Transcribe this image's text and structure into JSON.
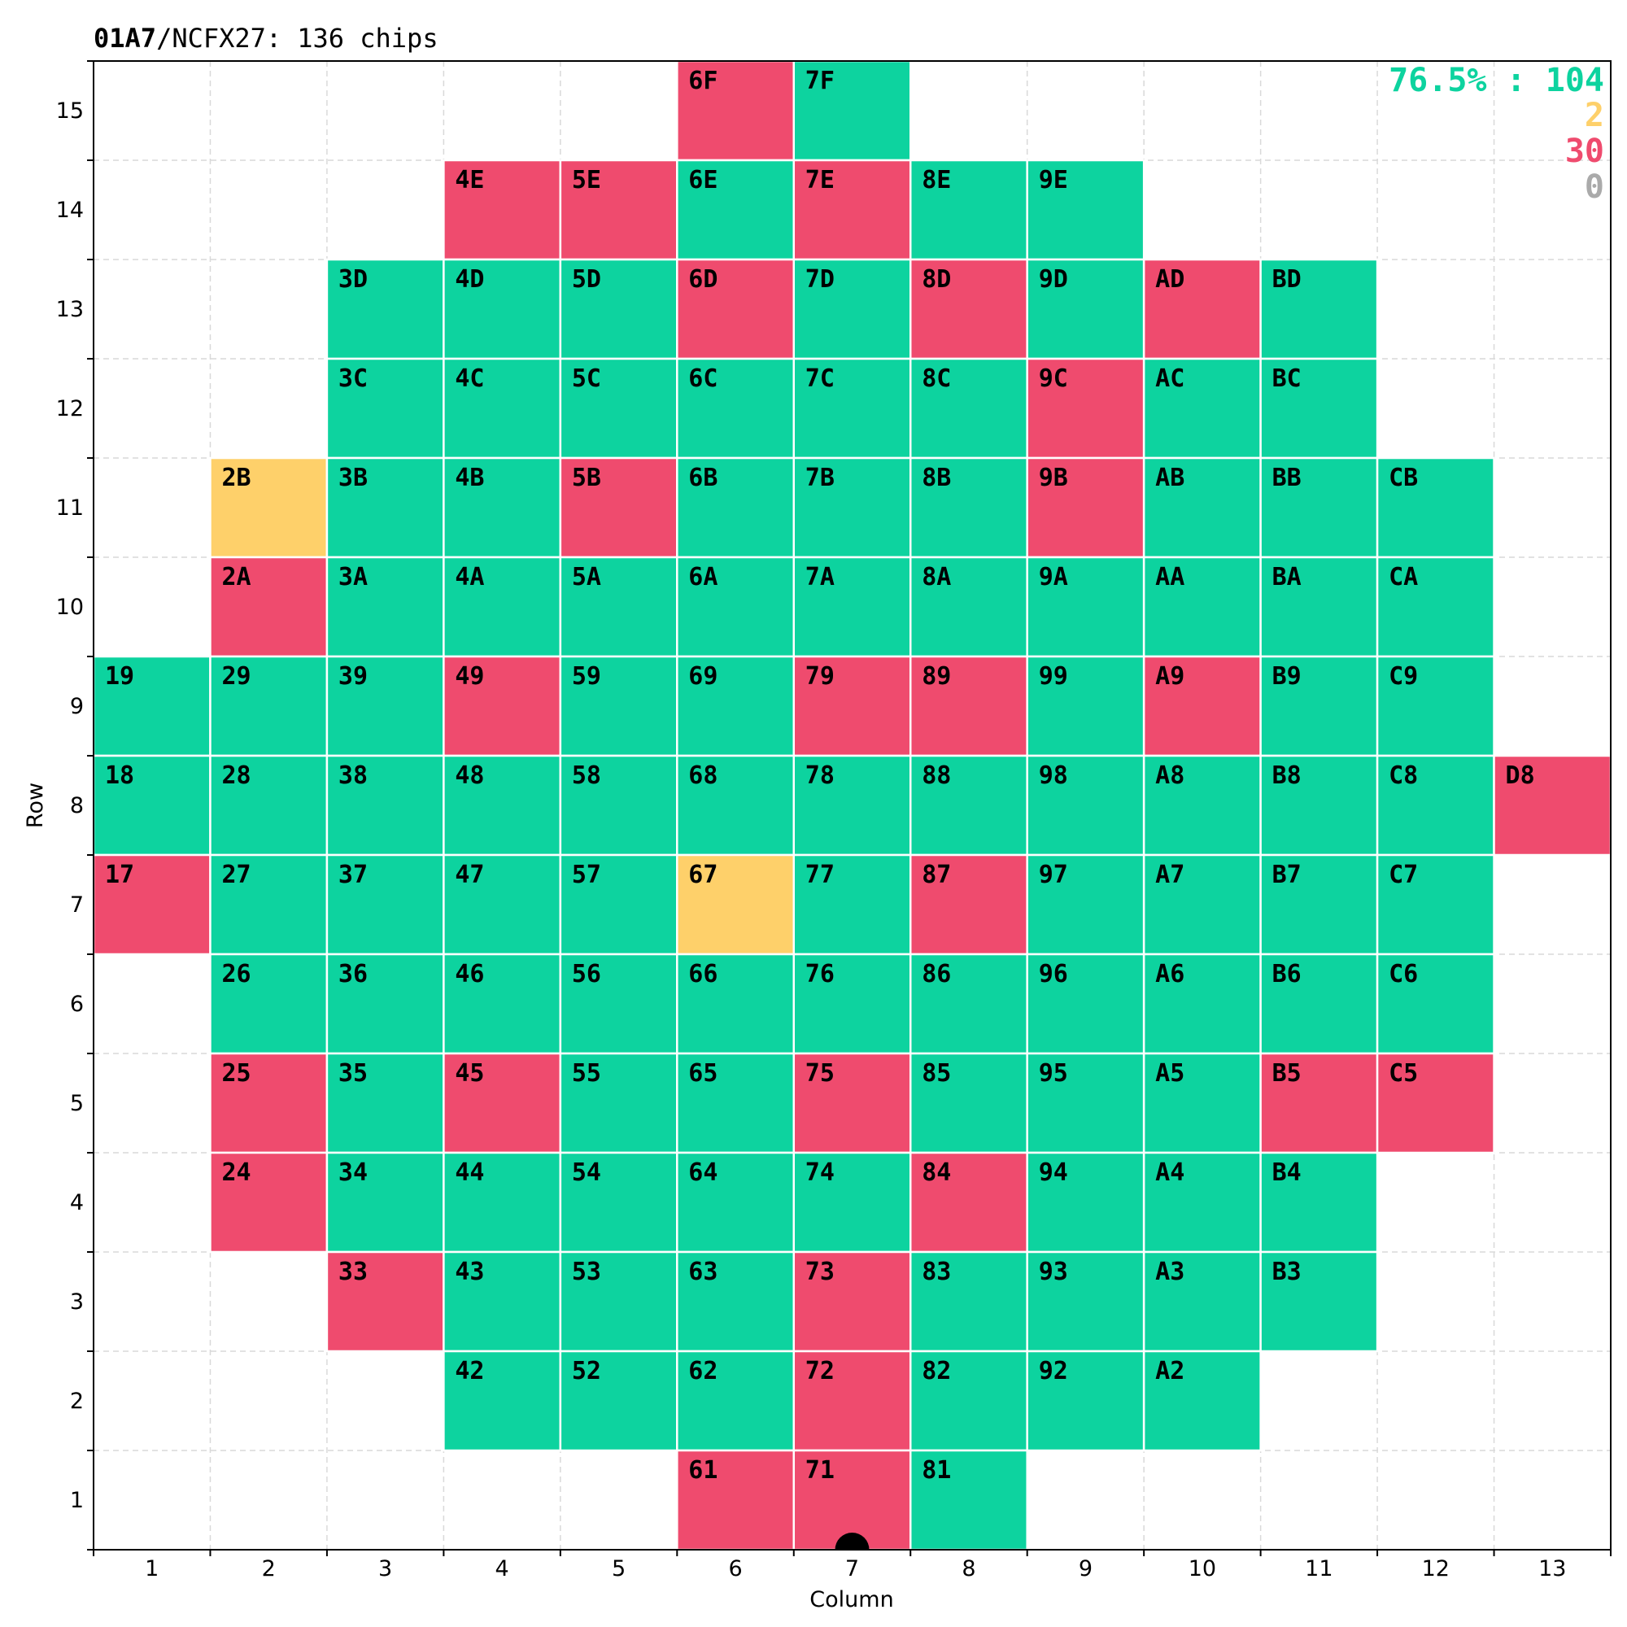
{
  "title": {
    "lot": "01A7",
    "product": "/NCFX27:",
    "chip_count": "136 chips"
  },
  "summary": {
    "pass_text": "76.5% : 104",
    "warn_text": "2",
    "fail_text": "30",
    "unknown_text": "0"
  },
  "colors": {
    "pass": "#0dd39f",
    "warn": "#fed06a",
    "fail": "#ef4b6e",
    "unknown": "#aaaaaa",
    "grid": "#d9d9d9",
    "cell_border": "#ffffff",
    "notch": "#000000"
  },
  "chart_data": {
    "type": "heatmap",
    "title": "01A7/NCFX27:  136 chips",
    "xlabel": "Column",
    "ylabel": "Row",
    "xlim": [
      0.5,
      13.5
    ],
    "ylim": [
      0.5,
      15.5
    ],
    "x_ticks": [
      1,
      2,
      3,
      4,
      5,
      6,
      7,
      8,
      9,
      10,
      11,
      12,
      13
    ],
    "y_ticks": [
      1,
      2,
      3,
      4,
      5,
      6,
      7,
      8,
      9,
      10,
      11,
      12,
      13,
      14,
      15
    ],
    "grid": true,
    "legend": "top-right",
    "notch": {
      "x": 7,
      "y": 0.5
    },
    "rows": [
      {
        "row": 15,
        "cells": [
          [
            6,
            "6F",
            "fail"
          ],
          [
            7,
            "7F",
            "pass"
          ]
        ]
      },
      {
        "row": 14,
        "cells": [
          [
            4,
            "4E",
            "fail"
          ],
          [
            5,
            "5E",
            "fail"
          ],
          [
            6,
            "6E",
            "pass"
          ],
          [
            7,
            "7E",
            "fail"
          ],
          [
            8,
            "8E",
            "pass"
          ],
          [
            9,
            "9E",
            "pass"
          ]
        ]
      },
      {
        "row": 13,
        "cells": [
          [
            3,
            "3D",
            "pass"
          ],
          [
            4,
            "4D",
            "pass"
          ],
          [
            5,
            "5D",
            "pass"
          ],
          [
            6,
            "6D",
            "fail"
          ],
          [
            7,
            "7D",
            "pass"
          ],
          [
            8,
            "8D",
            "fail"
          ],
          [
            9,
            "9D",
            "pass"
          ],
          [
            10,
            "AD",
            "fail"
          ],
          [
            11,
            "BD",
            "pass"
          ]
        ]
      },
      {
        "row": 12,
        "cells": [
          [
            3,
            "3C",
            "pass"
          ],
          [
            4,
            "4C",
            "pass"
          ],
          [
            5,
            "5C",
            "pass"
          ],
          [
            6,
            "6C",
            "pass"
          ],
          [
            7,
            "7C",
            "pass"
          ],
          [
            8,
            "8C",
            "pass"
          ],
          [
            9,
            "9C",
            "fail"
          ],
          [
            10,
            "AC",
            "pass"
          ],
          [
            11,
            "BC",
            "pass"
          ]
        ]
      },
      {
        "row": 11,
        "cells": [
          [
            2,
            "2B",
            "warn"
          ],
          [
            3,
            "3B",
            "pass"
          ],
          [
            4,
            "4B",
            "pass"
          ],
          [
            5,
            "5B",
            "fail"
          ],
          [
            6,
            "6B",
            "pass"
          ],
          [
            7,
            "7B",
            "pass"
          ],
          [
            8,
            "8B",
            "pass"
          ],
          [
            9,
            "9B",
            "fail"
          ],
          [
            10,
            "AB",
            "pass"
          ],
          [
            11,
            "BB",
            "pass"
          ],
          [
            12,
            "CB",
            "pass"
          ]
        ]
      },
      {
        "row": 10,
        "cells": [
          [
            2,
            "2A",
            "fail"
          ],
          [
            3,
            "3A",
            "pass"
          ],
          [
            4,
            "4A",
            "pass"
          ],
          [
            5,
            "5A",
            "pass"
          ],
          [
            6,
            "6A",
            "pass"
          ],
          [
            7,
            "7A",
            "pass"
          ],
          [
            8,
            "8A",
            "pass"
          ],
          [
            9,
            "9A",
            "pass"
          ],
          [
            10,
            "AA",
            "pass"
          ],
          [
            11,
            "BA",
            "pass"
          ],
          [
            12,
            "CA",
            "pass"
          ]
        ]
      },
      {
        "row": 9,
        "cells": [
          [
            1,
            "19",
            "pass"
          ],
          [
            2,
            "29",
            "pass"
          ],
          [
            3,
            "39",
            "pass"
          ],
          [
            4,
            "49",
            "fail"
          ],
          [
            5,
            "59",
            "pass"
          ],
          [
            6,
            "69",
            "pass"
          ],
          [
            7,
            "79",
            "fail"
          ],
          [
            8,
            "89",
            "fail"
          ],
          [
            9,
            "99",
            "pass"
          ],
          [
            10,
            "A9",
            "fail"
          ],
          [
            11,
            "B9",
            "pass"
          ],
          [
            12,
            "C9",
            "pass"
          ]
        ]
      },
      {
        "row": 8,
        "cells": [
          [
            1,
            "18",
            "pass"
          ],
          [
            2,
            "28",
            "pass"
          ],
          [
            3,
            "38",
            "pass"
          ],
          [
            4,
            "48",
            "pass"
          ],
          [
            5,
            "58",
            "pass"
          ],
          [
            6,
            "68",
            "pass"
          ],
          [
            7,
            "78",
            "pass"
          ],
          [
            8,
            "88",
            "pass"
          ],
          [
            9,
            "98",
            "pass"
          ],
          [
            10,
            "A8",
            "pass"
          ],
          [
            11,
            "B8",
            "pass"
          ],
          [
            12,
            "C8",
            "pass"
          ],
          [
            13,
            "D8",
            "fail"
          ]
        ]
      },
      {
        "row": 7,
        "cells": [
          [
            1,
            "17",
            "fail"
          ],
          [
            2,
            "27",
            "pass"
          ],
          [
            3,
            "37",
            "pass"
          ],
          [
            4,
            "47",
            "pass"
          ],
          [
            5,
            "57",
            "pass"
          ],
          [
            6,
            "67",
            "warn"
          ],
          [
            7,
            "77",
            "pass"
          ],
          [
            8,
            "87",
            "fail"
          ],
          [
            9,
            "97",
            "pass"
          ],
          [
            10,
            "A7",
            "pass"
          ],
          [
            11,
            "B7",
            "pass"
          ],
          [
            12,
            "C7",
            "pass"
          ]
        ]
      },
      {
        "row": 6,
        "cells": [
          [
            2,
            "26",
            "pass"
          ],
          [
            3,
            "36",
            "pass"
          ],
          [
            4,
            "46",
            "pass"
          ],
          [
            5,
            "56",
            "pass"
          ],
          [
            6,
            "66",
            "pass"
          ],
          [
            7,
            "76",
            "pass"
          ],
          [
            8,
            "86",
            "pass"
          ],
          [
            9,
            "96",
            "pass"
          ],
          [
            10,
            "A6",
            "pass"
          ],
          [
            11,
            "B6",
            "pass"
          ],
          [
            12,
            "C6",
            "pass"
          ]
        ]
      },
      {
        "row": 5,
        "cells": [
          [
            2,
            "25",
            "fail"
          ],
          [
            3,
            "35",
            "pass"
          ],
          [
            4,
            "45",
            "fail"
          ],
          [
            5,
            "55",
            "pass"
          ],
          [
            6,
            "65",
            "pass"
          ],
          [
            7,
            "75",
            "fail"
          ],
          [
            8,
            "85",
            "pass"
          ],
          [
            9,
            "95",
            "pass"
          ],
          [
            10,
            "A5",
            "pass"
          ],
          [
            11,
            "B5",
            "fail"
          ],
          [
            12,
            "C5",
            "fail"
          ]
        ]
      },
      {
        "row": 4,
        "cells": [
          [
            2,
            "24",
            "fail"
          ],
          [
            3,
            "34",
            "pass"
          ],
          [
            4,
            "44",
            "pass"
          ],
          [
            5,
            "54",
            "pass"
          ],
          [
            6,
            "64",
            "pass"
          ],
          [
            7,
            "74",
            "pass"
          ],
          [
            8,
            "84",
            "fail"
          ],
          [
            9,
            "94",
            "pass"
          ],
          [
            10,
            "A4",
            "pass"
          ],
          [
            11,
            "B4",
            "pass"
          ]
        ]
      },
      {
        "row": 3,
        "cells": [
          [
            3,
            "33",
            "fail"
          ],
          [
            4,
            "43",
            "pass"
          ],
          [
            5,
            "53",
            "pass"
          ],
          [
            6,
            "63",
            "pass"
          ],
          [
            7,
            "73",
            "fail"
          ],
          [
            8,
            "83",
            "pass"
          ],
          [
            9,
            "93",
            "pass"
          ],
          [
            10,
            "A3",
            "pass"
          ],
          [
            11,
            "B3",
            "pass"
          ]
        ]
      },
      {
        "row": 2,
        "cells": [
          [
            4,
            "42",
            "pass"
          ],
          [
            5,
            "52",
            "pass"
          ],
          [
            6,
            "62",
            "pass"
          ],
          [
            7,
            "72",
            "fail"
          ],
          [
            8,
            "82",
            "pass"
          ],
          [
            9,
            "92",
            "pass"
          ],
          [
            10,
            "A2",
            "pass"
          ]
        ]
      },
      {
        "row": 1,
        "cells": [
          [
            6,
            "61",
            "fail"
          ],
          [
            7,
            "71",
            "fail"
          ],
          [
            8,
            "81",
            "pass"
          ]
        ]
      }
    ]
  }
}
